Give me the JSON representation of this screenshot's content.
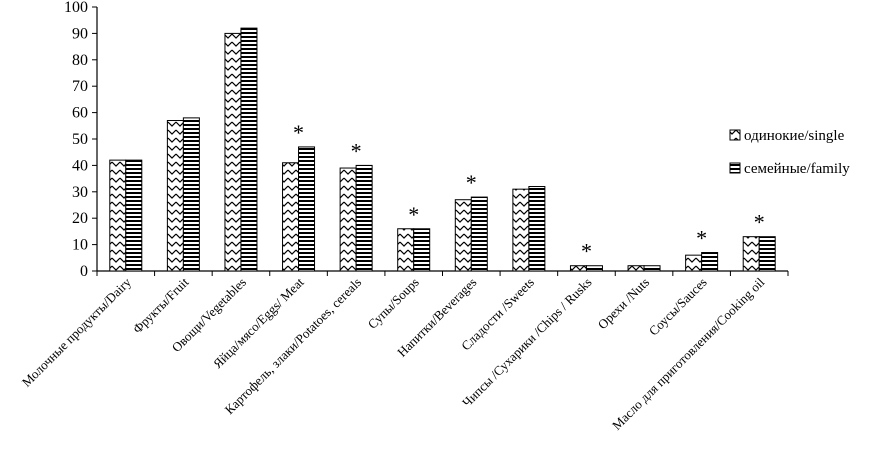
{
  "chart_data": {
    "type": "bar",
    "categories": [
      "Молочные продукты/Dairy",
      "Фрукты/Fruit",
      "Овощи/Vegetables",
      "Яйца/мясо/Eggs/ Meat",
      "Картофель, злаки/Potatoes, cereals",
      "Супы/Soups",
      "Напитки/Beverages",
      "Сладости /Sweets",
      "Чипсы /Сухарики /Chips / Rusks",
      "Орехи /Nuts",
      "Соусы/Sauces",
      "Масло для приготовления/Cooking oil"
    ],
    "series": [
      {
        "name": "одинокие/single",
        "values": [
          42,
          57,
          90,
          41,
          39,
          16,
          27,
          31,
          2,
          2,
          6,
          13
        ]
      },
      {
        "name": "семейные/family",
        "values": [
          42,
          58,
          92,
          47,
          40,
          16,
          28,
          32,
          2,
          2,
          7,
          13
        ]
      }
    ],
    "significance_marker": "*",
    "significant": [
      false,
      false,
      false,
      true,
      true,
      true,
      true,
      false,
      true,
      false,
      true,
      true
    ],
    "yticks": [
      "0",
      "10",
      "20",
      "30",
      "40",
      "50",
      "60",
      "70",
      "80",
      "90",
      "100"
    ],
    "ylim": [
      0,
      100
    ],
    "grid": false,
    "legend_position": "right",
    "colors": {
      "ink": "#000000",
      "background": "#ffffff"
    }
  }
}
